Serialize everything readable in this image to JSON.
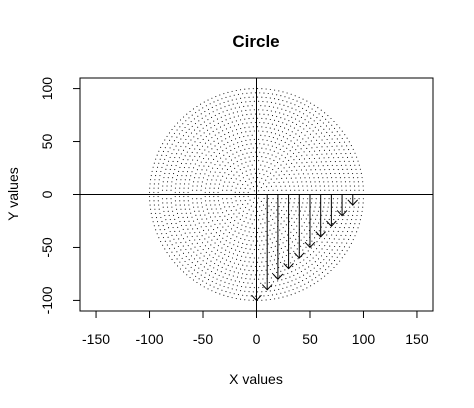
{
  "chart_data": {
    "type": "scatter",
    "title": "Circle",
    "xlabel": "X values",
    "ylabel": "Y values",
    "xlim": [
      -165,
      165
    ],
    "ylim": [
      -110,
      110
    ],
    "x_ticks": [
      -150,
      -100,
      -50,
      0,
      50,
      100,
      150
    ],
    "y_ticks": [
      -100,
      -50,
      0,
      50,
      100
    ],
    "grid": false,
    "legend": "none",
    "reference_lines": {
      "h": 0,
      "v": 0
    },
    "dot_circle": {
      "center": [
        0,
        0
      ],
      "radius": 100,
      "rings": [
        4,
        8,
        12,
        16,
        20,
        24,
        28,
        32,
        36,
        40,
        44,
        48,
        52,
        56,
        60,
        64,
        68,
        72,
        76,
        80,
        84,
        88,
        92,
        96,
        100
      ],
      "point_spacing": 4,
      "point_style": "small black dots"
    },
    "arrows": [
      {
        "x0": 0,
        "y0": 0,
        "x1": 0,
        "y1": -100
      },
      {
        "x0": 10,
        "y0": 0,
        "x1": 10,
        "y1": -90
      },
      {
        "x0": 20,
        "y0": 0,
        "x1": 20,
        "y1": -80
      },
      {
        "x0": 30,
        "y0": 0,
        "x1": 30,
        "y1": -70
      },
      {
        "x0": 40,
        "y0": 0,
        "x1": 40,
        "y1": -60
      },
      {
        "x0": 50,
        "y0": 0,
        "x1": 50,
        "y1": -50
      },
      {
        "x0": 60,
        "y0": 0,
        "x1": 60,
        "y1": -40
      },
      {
        "x0": 70,
        "y0": 0,
        "x1": 70,
        "y1": -30
      },
      {
        "x0": 80,
        "y0": 0,
        "x1": 80,
        "y1": -20
      },
      {
        "x0": 90,
        "y0": 0,
        "x1": 90,
        "y1": -10
      }
    ],
    "colors": {
      "points": "#000000",
      "lines": "#000000",
      "arrows": "#000000",
      "background": "#ffffff"
    }
  }
}
